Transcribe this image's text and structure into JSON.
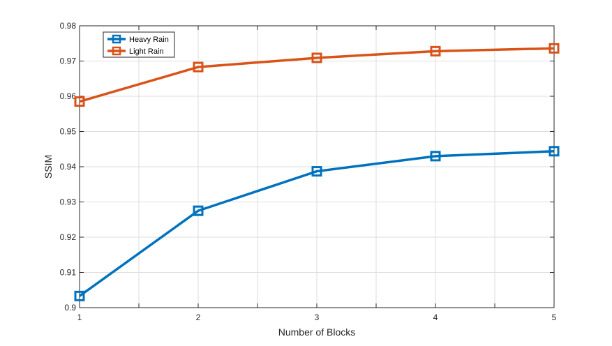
{
  "chart_data": {
    "type": "line",
    "title": "",
    "xlabel": "Number of Blocks",
    "ylabel": "SSIM",
    "x": [
      1,
      2,
      3,
      4,
      5
    ],
    "x_ticks": [
      "1",
      "2",
      "3",
      "4",
      "5"
    ],
    "y_ticks": [
      "0.9",
      "0.91",
      "0.92",
      "0.93",
      "0.94",
      "0.95",
      "0.96",
      "0.97",
      "0.98"
    ],
    "xlim": [
      1,
      5
    ],
    "ylim": [
      0.9,
      0.98
    ],
    "grid": true,
    "legend_position": "top-left",
    "series": [
      {
        "name": "Heavy Rain",
        "color": "#0072BD",
        "marker": "square",
        "values": [
          0.9033,
          0.9275,
          0.9387,
          0.943,
          0.9444
        ]
      },
      {
        "name": "Light Rain",
        "color": "#D95319",
        "marker": "square",
        "values": [
          0.9585,
          0.9683,
          0.9709,
          0.9728,
          0.9736
        ]
      }
    ]
  }
}
